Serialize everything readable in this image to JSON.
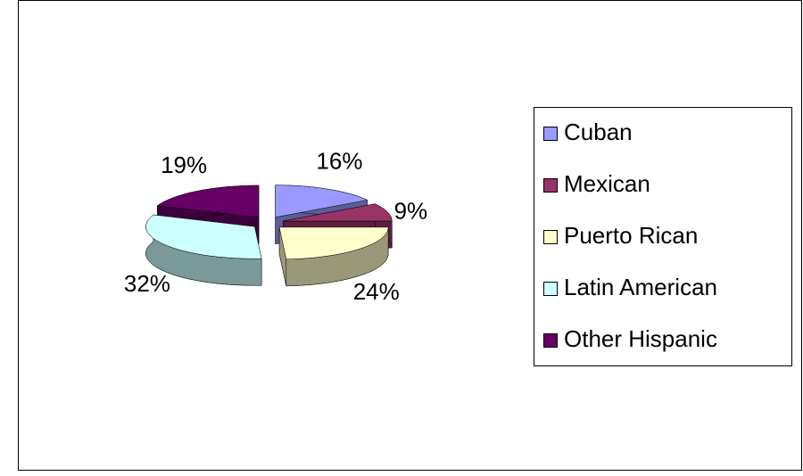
{
  "chart_data": {
    "type": "pie3d",
    "categories": [
      "Cuban",
      "Mexican",
      "Puerto Rican",
      "Latin American",
      "Other Hispanic"
    ],
    "values": [
      16,
      9,
      24,
      32,
      19
    ],
    "value_labels": [
      "16%",
      "9%",
      "24%",
      "32%",
      "19%"
    ],
    "colors": [
      "#9999ff",
      "#993366",
      "#ffffcc",
      "#ccffff",
      "#660066"
    ],
    "legend": "right"
  }
}
